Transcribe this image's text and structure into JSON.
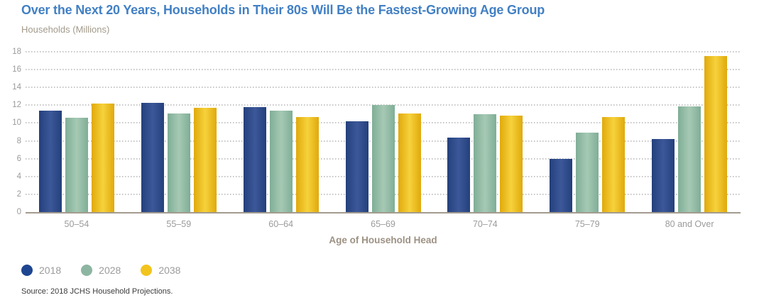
{
  "title": "Over the Next 20 Years, Households in Their 80s Will Be the Fastest-Growing Age Group",
  "subtitle": "Households (Millions)",
  "source": "Source: 2018 JCHS Household Projections.",
  "colors": {
    "title_text": "#4280c4",
    "subtitle_text": "#a29a8b",
    "axis_tick_text": "#9b9b9b",
    "axis_title_text": "#9d9183",
    "baseline": "#a39b8f",
    "gridline": "#c6c6c6",
    "series_2018": "#2a4a8c",
    "series_2028": "#8db6a2",
    "series_2038": "#f2c41e"
  },
  "chart_data": {
    "type": "bar",
    "title": "Over the Next 20 Years, Households in Their 80s Will Be the Fastest-Growing Age Group",
    "ylabel": "Households (Millions)",
    "xlabel": "Age of Household Head",
    "ylim": [
      0,
      18
    ],
    "yticks": [
      0,
      2,
      4,
      6,
      8,
      10,
      12,
      14,
      16,
      18
    ],
    "grid": "dotted horizontal",
    "legend_position": "bottom-left",
    "categories": [
      "50–54",
      "55–59",
      "60–64",
      "65–69",
      "70–74",
      "75–79",
      "80 and Over"
    ],
    "series": [
      {
        "name": "2018",
        "color": "#1e4590",
        "color_edge": "#24407c",
        "color_mid": "#3c5899",
        "values": [
          11.4,
          12.3,
          11.8,
          10.2,
          8.4,
          6.0,
          8.2
        ]
      },
      {
        "name": "2028",
        "color": "#8db6a2",
        "color_edge": "#7fae96",
        "color_mid": "#a6c9b4",
        "values": [
          10.6,
          11.1,
          11.4,
          12.0,
          11.0,
          8.9,
          11.9
        ]
      },
      {
        "name": "2038",
        "color": "#f2c41e",
        "color_edge": "#e0a90b",
        "color_mid": "#f6d23c",
        "values": [
          12.2,
          11.7,
          10.7,
          11.1,
          10.8,
          10.7,
          17.5
        ]
      }
    ]
  }
}
